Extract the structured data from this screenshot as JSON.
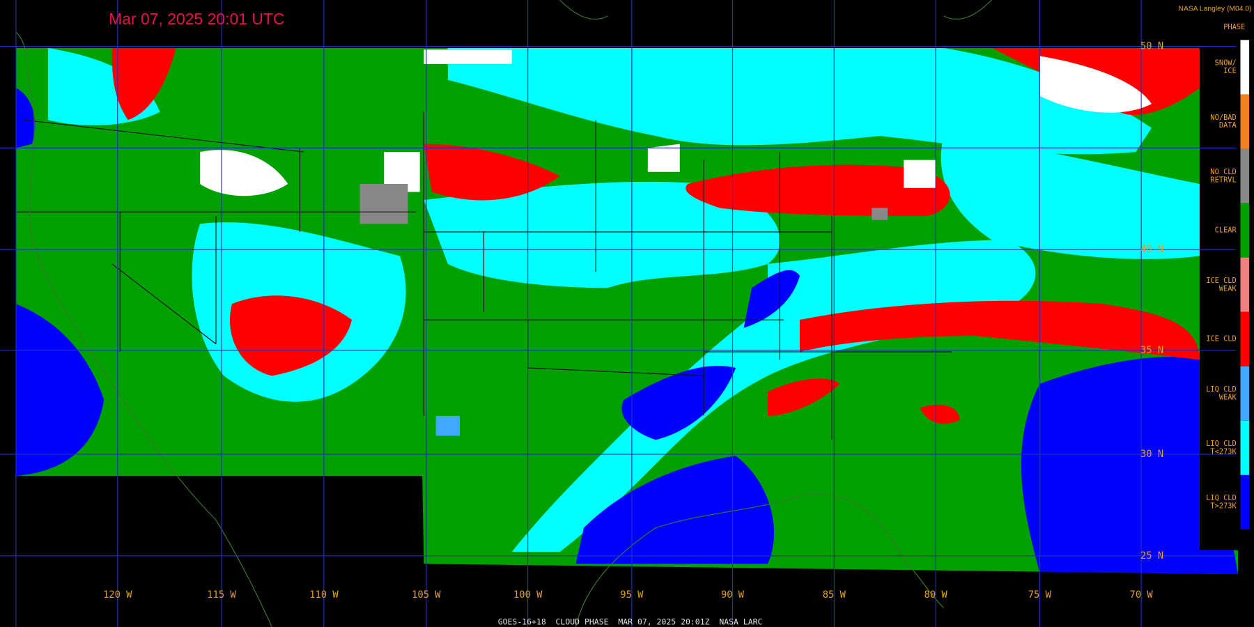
{
  "header": {
    "title": "Mar 07, 2025 20:01 UTC",
    "credit": "NASA Langley (M04.0)"
  },
  "legend": {
    "title": "PHASE",
    "items": [
      {
        "lines": [
          "SNOW/",
          "ICE"
        ],
        "color": "#ffffff"
      },
      {
        "lines": [
          "NO/BAD",
          "DATA"
        ],
        "color": "#f08020"
      },
      {
        "lines": [
          "NO CLD",
          "RETRVL"
        ],
        "color": "#888888"
      },
      {
        "lines": [
          "CLEAR"
        ],
        "color": "#00a000"
      },
      {
        "lines": [
          "ICE CLD",
          "WEAK"
        ],
        "color": "#f08080"
      },
      {
        "lines": [
          "ICE CLD"
        ],
        "color": "#ff0000"
      },
      {
        "lines": [
          "LIQ CLD",
          "WEAK"
        ],
        "color": "#40a8ff"
      },
      {
        "lines": [
          "LIQ CLD",
          "T<273K"
        ],
        "color": "#00ffff"
      },
      {
        "lines": [
          "LIQ CLD",
          "T>273K"
        ],
        "color": "#0000ff"
      }
    ]
  },
  "map": {
    "latitude_labels": [
      "50 N",
      "40 N",
      "35 N",
      "30 N",
      "25 N"
    ],
    "longitude_labels": [
      "120 W",
      "115 W",
      "110 W",
      "105 W",
      "100 W",
      "95 W",
      "90 W",
      "85 W",
      "80 W",
      "75 W",
      "70 W"
    ]
  },
  "footer": {
    "caption": "GOES-16+18  CLOUD PHASE  MAR 07, 2025 20:01Z  NASA LARC"
  }
}
